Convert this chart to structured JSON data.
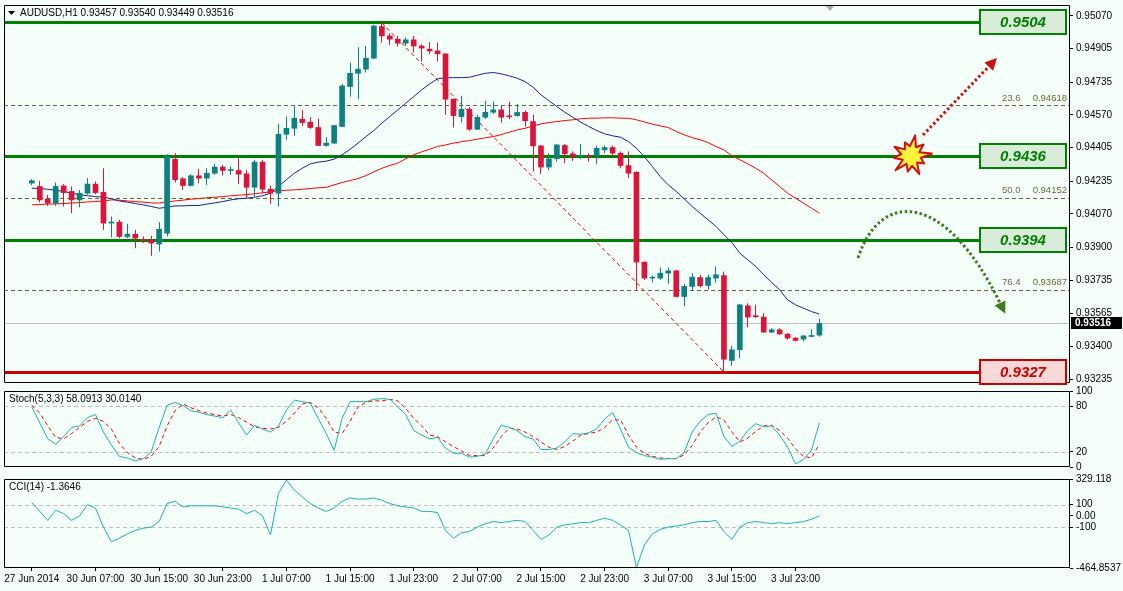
{
  "chart_data": [
    {
      "type": "candlestick",
      "title": "AUDUSD,H1 0.93457 0.93540 0.93449 0.93516",
      "categories": [
        null,
        null,
        null,
        null,
        null,
        null,
        null,
        null,
        null,
        null,
        null,
        null,
        null,
        null,
        null,
        null,
        null,
        null,
        null,
        null,
        null,
        null,
        null,
        null,
        null,
        null,
        null,
        null,
        null,
        null,
        null,
        null,
        null,
        null,
        null,
        null,
        null,
        null,
        null,
        null,
        null,
        null,
        null,
        null,
        null,
        null,
        null,
        null,
        null,
        null,
        null,
        null,
        null,
        null,
        null,
        null,
        null,
        null,
        null,
        null,
        null,
        null,
        null,
        null,
        null,
        null,
        null,
        null,
        null,
        null,
        null,
        null,
        null,
        null,
        null,
        null,
        null,
        null,
        null,
        null,
        null,
        null,
        null,
        null,
        null,
        null,
        null,
        null,
        null,
        null,
        null,
        null,
        null,
        null,
        null,
        null,
        null,
        null,
        null,
        null
      ],
      "series": [
        {
          "type": "line",
          "color": "#1e1e9a",
          "values": [
            0.94199,
            0.94198,
            0.94194,
            0.94189,
            0.94183,
            0.94174,
            0.94166,
            0.94161,
            0.94157,
            0.94154,
            0.94146,
            0.94135,
            0.94129,
            0.94122,
            0.94115,
            0.94107,
            0.94098,
            0.94103,
            0.9411,
            0.9411,
            0.94112,
            0.94112,
            0.94119,
            0.94125,
            0.94132,
            0.9414,
            0.94146,
            0.94149,
            0.94154,
            0.94161,
            0.94174,
            0.94208,
            0.94242,
            0.94275,
            0.943,
            0.94322,
            0.94331,
            0.94336,
            0.94346,
            0.94368,
            0.94396,
            0.94427,
            0.9446,
            0.94491,
            0.94528,
            0.94561,
            0.94595,
            0.94629,
            0.94662,
            0.94696,
            0.94726,
            0.94752,
            0.94757,
            0.94758,
            0.94758,
            0.9476,
            0.9477,
            0.9478,
            0.94784,
            0.94777,
            0.94767,
            0.94755,
            0.94738,
            0.9471,
            0.94671,
            0.94641,
            0.94612,
            0.94583,
            0.94558,
            0.94533,
            0.94511,
            0.94491,
            0.94474,
            0.94464,
            0.94457,
            0.94435,
            0.94401,
            0.94359,
            0.94309,
            0.94258,
            0.94216,
            0.94183,
            0.94146,
            0.94107,
            0.94073,
            0.9404,
            0.94006,
            0.93964,
            0.93925,
            0.93871,
            0.93837,
            0.93804,
            0.93762,
            0.93723,
            0.93686,
            0.93635,
            0.9361,
            0.93593,
            0.93576,
            0.93563
          ]
        },
        {
          "type": "line",
          "color": "#ff0000",
          "values": [
            0.94115,
            0.94117,
            0.94119,
            0.9412,
            0.94122,
            0.94124,
            0.94127,
            0.9413,
            0.94132,
            0.94135,
            0.9414,
            0.94139,
            0.94135,
            0.94132,
            0.94129,
            0.94125,
            0.94124,
            0.9413,
            0.94135,
            0.94139,
            0.94144,
            0.94147,
            0.94151,
            0.94154,
            0.94157,
            0.94161,
            0.94164,
            0.94167,
            0.94171,
            0.94176,
            0.94181,
            0.94186,
            0.94189,
            0.94191,
            0.94194,
            0.94198,
            0.94201,
            0.94204,
            0.94216,
            0.94228,
            0.94238,
            0.94248,
            0.94263,
            0.94282,
            0.943,
            0.94314,
            0.94326,
            0.94348,
            0.94368,
            0.94383,
            0.94396,
            0.9441,
            0.94418,
            0.94427,
            0.94434,
            0.9444,
            0.94447,
            0.94454,
            0.9446,
            0.9447,
            0.94482,
            0.94494,
            0.94502,
            0.94514,
            0.94524,
            0.94531,
            0.94536,
            0.94541,
            0.94545,
            0.9455,
            0.94553,
            0.94553,
            0.94555,
            0.94555,
            0.94553,
            0.94553,
            0.94545,
            0.94534,
            0.94523,
            0.94514,
            0.94506,
            0.94486,
            0.94469,
            0.94455,
            0.94444,
            0.9443,
            0.9441,
            0.94393,
            0.94363,
            0.94343,
            0.94322,
            0.943,
            0.94275,
            0.94241,
            0.94208,
            0.94174,
            0.94149,
            0.94124,
            0.94098,
            0.94073
          ]
        },
        {
          "type": "line",
          "color": "#ff0000",
          "line_style": "dashed",
          "values": [
            null,
            null,
            null,
            null,
            null,
            null,
            null,
            null,
            null,
            null,
            null,
            null,
            null,
            null,
            null,
            null,
            null,
            null,
            null,
            null,
            null,
            null,
            null,
            null,
            null,
            null,
            null,
            null,
            null,
            null,
            null,
            null,
            null,
            null,
            null,
            null,
            null,
            null,
            null,
            null,
            null,
            null,
            null,
            null,
            0.95034,
            null,
            null,
            null,
            null,
            null,
            null,
            null,
            null,
            null,
            null,
            null,
            null,
            null,
            null,
            null,
            null,
            null,
            null,
            null,
            null,
            null,
            null,
            null,
            null,
            null,
            null,
            null,
            null,
            null,
            null,
            null,
            null,
            null,
            null,
            null,
            null,
            null,
            null,
            null,
            null,
            null,
            null,
            0.9327,
            null,
            null,
            null,
            null,
            null,
            null,
            null,
            null,
            null,
            null,
            null,
            null
          ]
        },
        {
          "ohlc": [
            [
              0.94225,
              0.94245,
              0.94215,
              0.94237
            ],
            [
              0.94208,
              0.94236,
              0.94127,
              0.9414
            ],
            [
              0.94144,
              0.94166,
              0.9411,
              0.94124
            ],
            [
              0.94124,
              0.94228,
              0.9411,
              0.94208
            ],
            [
              0.94211,
              0.9422,
              0.94107,
              0.94177
            ],
            [
              0.94183,
              0.94208,
              0.94073,
              0.9414
            ],
            [
              0.9414,
              0.94191,
              0.94103,
              0.94174
            ],
            [
              0.94174,
              0.9425,
              0.94166,
              0.9422
            ],
            [
              0.9422,
              0.94233,
              0.94169,
              0.94177
            ],
            [
              0.94179,
              0.943,
              0.93989,
              0.94023
            ],
            [
              0.94023,
              0.94056,
              0.93952,
              0.94028
            ],
            [
              0.94028,
              0.9404,
              0.93947,
              0.93955
            ],
            [
              0.93955,
              0.94019,
              0.93947,
              0.93967
            ],
            [
              0.93967,
              0.93989,
              0.93896,
              0.93947
            ],
            [
              0.9394,
              0.93955,
              0.93922,
              0.93935
            ],
            [
              0.93938,
              0.93959,
              0.93858,
              0.93922
            ],
            [
              0.93917,
              0.94028,
              0.93879,
              0.93992
            ],
            [
              0.93972,
              0.94371,
              0.93955,
              0.94359
            ],
            [
              0.94346,
              0.94376,
              0.94228,
              0.94242
            ],
            [
              0.94247,
              0.94255,
              0.94191,
              0.94213
            ],
            [
              0.94213,
              0.9427,
              0.94208,
              0.94262
            ],
            [
              0.94262,
              0.94297,
              0.94225,
              0.9425
            ],
            [
              0.9425,
              0.943,
              0.94216,
              0.94275
            ],
            [
              0.94275,
              0.94322,
              0.94267,
              0.94306
            ],
            [
              0.94306,
              0.94317,
              0.94263,
              0.94289
            ],
            [
              0.94289,
              0.94309,
              0.94267,
              0.9429
            ],
            [
              0.94289,
              0.94351,
              0.9422,
              0.9427
            ],
            [
              0.94272,
              0.94292,
              0.94146,
              0.94204
            ],
            [
              0.94204,
              0.94343,
              0.94157,
              0.94331
            ],
            [
              0.94331,
              0.94343,
              0.94174,
              0.94194
            ],
            [
              0.94194,
              0.94213,
              0.9412,
              0.94174
            ],
            [
              0.94174,
              0.94524,
              0.94107,
              0.94472
            ],
            [
              0.94472,
              0.94561,
              0.94444,
              0.94502
            ],
            [
              0.94502,
              0.9462,
              0.94464,
              0.94553
            ],
            [
              0.94548,
              0.94595,
              0.94514,
              0.94531
            ],
            [
              0.94533,
              0.94558,
              0.94499,
              0.94506
            ],
            [
              0.94506,
              0.9455,
              0.94413,
              0.94415
            ],
            [
              0.94415,
              0.94457,
              0.9441,
              0.94427
            ],
            [
              0.94427,
              0.94518,
              0.94423,
              0.94516
            ],
            [
              0.94511,
              0.94726,
              0.94509,
              0.94716
            ],
            [
              0.94713,
              0.94834,
              0.94662,
              0.9478
            ],
            [
              0.9478,
              0.94912,
              0.94649,
              0.94801
            ],
            [
              0.94801,
              0.94918,
              0.94784,
              0.94856
            ],
            [
              0.94856,
              0.95025,
              0.94854,
              0.95019
            ],
            [
              0.95016,
              0.95034,
              0.94935,
              0.94969
            ],
            [
              0.94969,
              0.94982,
              0.94923,
              0.94952
            ],
            [
              0.94952,
              0.94969,
              0.94915,
              0.94932
            ],
            [
              0.94932,
              0.94961,
              0.94918,
              0.94949
            ],
            [
              0.94949,
              0.94969,
              0.94885,
              0.94918
            ],
            [
              0.94918,
              0.94927,
              0.94839,
              0.94907
            ],
            [
              0.94902,
              0.94937,
              0.94876,
              0.94893
            ],
            [
              0.94893,
              0.94935,
              0.94839,
              0.94878
            ],
            [
              0.94878,
              0.94881,
              0.9457,
              0.94649
            ],
            [
              0.94649,
              0.94652,
              0.94506,
              0.94566
            ],
            [
              0.94561,
              0.94666,
              0.94531,
              0.94598
            ],
            [
              0.94598,
              0.94609,
              0.94489,
              0.94497
            ],
            [
              0.94497,
              0.9457,
              0.94494,
              0.94558
            ],
            [
              0.94558,
              0.94641,
              0.9455,
              0.94583
            ],
            [
              0.94583,
              0.94637,
              0.94575,
              0.94595
            ],
            [
              0.94595,
              0.94615,
              0.94531,
              0.94558
            ],
            [
              0.94563,
              0.94637,
              0.94548,
              0.9456
            ],
            [
              0.94566,
              0.94624,
              0.94561,
              0.94582
            ],
            [
              0.94583,
              0.94592,
              0.94511,
              0.9454
            ],
            [
              0.94536,
              0.9457,
              0.94284,
              0.94413
            ],
            [
              0.94413,
              0.94418,
              0.94272,
              0.94306
            ],
            [
              0.94306,
              0.94376,
              0.94289,
              0.94348
            ],
            [
              0.94348,
              0.94423,
              0.94334,
              0.94418
            ],
            [
              0.94415,
              0.94423,
              0.94326,
              0.94373
            ],
            [
              0.94373,
              0.94385,
              0.94337,
              0.94359
            ],
            [
              0.94359,
              0.94423,
              0.94346,
              0.94361
            ],
            [
              0.94361,
              0.94376,
              0.94334,
              0.94359
            ],
            [
              0.94364,
              0.94415,
              0.94321,
              0.94401
            ],
            [
              0.94393,
              0.94415,
              0.94376,
              0.94405
            ],
            [
              0.94405,
              0.94415,
              0.94363,
              0.94376
            ],
            [
              0.94376,
              0.94385,
              0.943,
              0.94314
            ],
            [
              0.94314,
              0.94385,
              0.9425,
              0.94275
            ],
            [
              0.9428,
              0.94284,
              0.93686,
              0.93826
            ],
            [
              0.93826,
              0.93828,
              0.93736,
              0.93745
            ],
            [
              0.93745,
              0.93757,
              0.93723,
              0.93746
            ],
            [
              0.93745,
              0.93799,
              0.93736,
              0.9377
            ],
            [
              0.9377,
              0.93799,
              0.93716,
              0.93782
            ],
            [
              0.93782,
              0.93787,
              0.93647,
              0.93652
            ],
            [
              0.93652,
              0.93716,
              0.93602,
              0.93703
            ],
            [
              0.93703,
              0.9377,
              0.93681,
              0.9375
            ],
            [
              0.93748,
              0.93762,
              0.93698,
              0.93706
            ],
            [
              0.93708,
              0.93762,
              0.93686,
              0.93748
            ],
            [
              0.93745,
              0.93804,
              0.93723,
              0.93762
            ],
            [
              0.93758,
              0.93778,
              0.9327,
              0.93335
            ],
            [
              0.93329,
              0.93403,
              0.93303,
              0.93383
            ],
            [
              0.93383,
              0.93615,
              0.93341,
              0.9361
            ],
            [
              0.93605,
              0.93618,
              0.93497,
              0.93548
            ],
            [
              0.93551,
              0.9361,
              0.93543,
              0.9355
            ],
            [
              0.93548,
              0.93568,
              0.9347,
              0.93472
            ],
            [
              0.93472,
              0.93492,
              0.93467,
              0.93484
            ],
            [
              0.93484,
              0.93492,
              0.93458,
              0.93463
            ],
            [
              0.93462,
              0.93467,
              0.93433,
              0.93442
            ],
            [
              0.93442,
              0.93447,
              0.93425,
              0.9343
            ],
            [
              0.93437,
              0.93458,
              0.93425,
              0.93453
            ],
            [
              0.9345,
              0.93487,
              0.93447,
              0.93452
            ],
            [
              0.93457,
              0.9354,
              0.93449,
              0.93516
            ]
          ],
          "colors": [
            "#0f8080",
            "#dc143c",
            "#dc143c",
            "#0f8080",
            "#dc143c",
            "#dc143c",
            "#0f8080",
            "#0f8080",
            "#dc143c",
            "#dc143c",
            "#0f8080",
            "#dc143c",
            "#0f8080",
            "#dc143c",
            "#dc143c",
            "#dc143c",
            "#0f8080",
            "#0f8080",
            "#dc143c",
            "#dc143c",
            "#0f8080",
            "#dc143c",
            "#0f8080",
            "#0f8080",
            "#dc143c",
            "#0f8080",
            "#dc143c",
            "#dc143c",
            "#0f8080",
            "#dc143c",
            "#dc143c",
            "#0f8080",
            "#0f8080",
            "#0f8080",
            "#dc143c",
            "#dc143c",
            "#dc143c",
            "#0f8080",
            "#0f8080",
            "#0f8080",
            "#0f8080",
            "#0f8080",
            "#0f8080",
            "#0f8080",
            "#dc143c",
            "#dc143c",
            "#dc143c",
            "#0f8080",
            "#dc143c",
            "#dc143c",
            "#dc143c",
            "#dc143c",
            "#dc143c",
            "#dc143c",
            "#0f8080",
            "#dc143c",
            "#0f8080",
            "#0f8080",
            "#0f8080",
            "#dc143c",
            "#dc143c",
            "#0f8080",
            "#dc143c",
            "#dc143c",
            "#dc143c",
            "#0f8080",
            "#0f8080",
            "#dc143c",
            "#dc143c",
            "#0f8080",
            "#dc143c",
            "#0f8080",
            "#0f8080",
            "#dc143c",
            "#dc143c",
            "#dc143c",
            "#dc143c",
            "#dc143c",
            "#0f8080",
            "#0f8080",
            "#0f8080",
            "#dc143c",
            "#0f8080",
            "#0f8080",
            "#dc143c",
            "#0f8080",
            "#0f8080",
            "#dc143c",
            "#0f8080",
            "#0f8080",
            "#dc143c",
            "#dc143c",
            "#dc143c",
            "#0f8080",
            "#dc143c",
            "#dc143c",
            "#dc143c",
            "#0f8080",
            "#0f8080",
            "#0f8080"
          ]
        }
      ],
      "ylim": [
        0.93215,
        0.95125
      ],
      "yticks": [
        {
          "value": 0.9507,
          "label": "0.95070"
        },
        0.94905,
        0.94735,
        {
          "value": 0.9457,
          "label": "0.94570"
        },
        0.94405,
        0.94235,
        {
          "value": 0.9407,
          "label": "0.94070"
        },
        {
          "value": 0.939,
          "label": "0.93900"
        },
        0.93735,
        0.93565,
        {
          "value": 0.934,
          "label": "0.93400"
        },
        0.93235
      ],
      "ref_lines": [
        {
          "axis": "y",
          "value": 0.9504,
          "label": "0.9504",
          "color": "#008000",
          "line_style": "solid"
        },
        {
          "axis": "y",
          "value": 0.9436,
          "label": "0.9436",
          "color": "#008000",
          "line_style": "solid"
        },
        {
          "axis": "y",
          "value": 0.9394,
          "label": "0.9394",
          "color": "#008000",
          "line_style": "solid"
        },
        {
          "axis": "y",
          "value": 0.9327,
          "label": "0.9327",
          "color": "#cc0000",
          "line_style": "solid"
        },
        {
          "axis": "y",
          "value": 0.94618,
          "label": "0.94618",
          "color": "#5b6e2e",
          "line_style": "dashed"
        },
        {
          "axis": "y",
          "value": 0.94152,
          "label": "0.94152",
          "color": "#5b6e2e",
          "line_style": "dashed"
        },
        {
          "axis": "y",
          "value": 0.93687,
          "label": "0.93687",
          "color": "#5b6e2e",
          "line_style": "dashed"
        },
        {
          "axis": "y",
          "value": 0.93516,
          "label": "0.93516",
          "color": "#c0c0c0"
        }
      ],
      "annotations": [
        {
          "text": "23.6",
          "y": 0.94618
        },
        {
          "text": "50.0",
          "y": 0.94152
        },
        {
          "text": "76.4",
          "y": 0.93687
        }
      ],
      "tick_labels": "y"
    },
    {
      "type": "line",
      "title": "Stoch(5,3,3) 58.0913 30.0140",
      "categories": [
        null,
        null,
        null,
        null,
        null,
        null,
        null,
        null,
        null,
        null,
        null,
        null,
        null,
        null,
        null,
        null,
        null,
        null,
        null,
        null,
        null,
        null,
        null,
        null,
        null,
        null,
        null,
        null,
        null,
        null,
        null,
        null,
        null,
        null,
        null,
        null,
        null,
        null,
        null,
        null,
        null,
        null,
        null,
        null,
        null,
        null,
        null,
        null,
        null,
        null,
        null,
        null,
        null,
        null,
        null,
        null,
        null,
        null,
        null,
        null,
        null,
        null,
        null,
        null,
        null,
        null,
        null,
        null,
        null,
        null,
        null,
        null,
        null,
        null,
        null,
        null,
        null,
        null,
        null,
        null,
        null,
        null,
        null,
        null,
        null,
        null,
        null,
        null,
        null,
        null,
        null,
        null,
        null,
        null,
        null,
        null,
        null,
        null,
        null,
        null
      ],
      "series": [
        {
          "color": "#20b2aa",
          "values": [
            79,
            58,
            37,
            30,
            40,
            52,
            54,
            65,
            69,
            46,
            29,
            14,
            12,
            8,
            11,
            20,
            52,
            81,
            85,
            81,
            74,
            72,
            69,
            67,
            65,
            75,
            58,
            42,
            55,
            50,
            46,
            54,
            75,
            88,
            86,
            84,
            64,
            44,
            22,
            64,
            86,
            86,
            86,
            89,
            90,
            89,
            79,
            69,
            48,
            42,
            37,
            39,
            25,
            18,
            18,
            13,
            14,
            17,
            37,
            55,
            52,
            48,
            40,
            37,
            23,
            23,
            25,
            33,
            44,
            43,
            45,
            50,
            63,
            72,
            50,
            26,
            19,
            15,
            13,
            10,
            11,
            11,
            19,
            46,
            60,
            69,
            71,
            40,
            27,
            34,
            48,
            57,
            53,
            54,
            42,
            26,
            4,
            10,
            22,
            58
          ]
        },
        {
          "color": "#ff0000",
          "line_style": "dashed",
          "values": [
            81,
            71,
            54,
            39,
            37,
            44,
            52,
            60,
            64,
            60,
            50,
            31,
            19,
            12,
            10,
            14,
            27,
            54,
            74,
            83,
            78,
            74,
            71,
            69,
            67,
            69,
            65,
            59,
            53,
            51,
            50,
            52,
            60,
            71,
            83,
            85,
            78,
            64,
            46,
            44,
            60,
            79,
            85,
            87,
            87,
            89,
            87,
            77,
            64,
            54,
            42,
            40,
            33,
            27,
            21,
            15,
            15,
            15,
            25,
            40,
            51,
            50,
            46,
            40,
            33,
            26,
            23,
            27,
            34,
            42,
            44,
            46,
            52,
            62,
            62,
            42,
            26,
            18,
            14,
            12,
            11,
            11,
            16,
            28,
            46,
            58,
            66,
            62,
            46,
            33,
            38,
            47,
            54,
            55,
            48,
            38,
            24,
            14,
            12,
            30
          ]
        }
      ],
      "ylim": [
        0,
        100
      ],
      "yticks": [
        0,
        20,
        80,
        100
      ],
      "ref_lines": [
        {
          "axis": "y",
          "value": 20,
          "color": "#c0c0c0",
          "line_style": "dashed"
        },
        {
          "axis": "y",
          "value": 80,
          "color": "#c0c0c0",
          "line_style": "dashed"
        }
      ],
      "tick_labels": "y"
    },
    {
      "type": "line",
      "title": "CCI(14) -1.3646",
      "categories": [
        "27 Jun 2014",
        null,
        null,
        null,
        null,
        null,
        null,
        null,
        "30 Jun 07:00",
        null,
        null,
        null,
        null,
        null,
        null,
        null,
        "30 Jun 15:00",
        null,
        null,
        null,
        null,
        null,
        null,
        null,
        "30 Jun 23:00",
        null,
        null,
        null,
        null,
        null,
        null,
        null,
        "1 Jul 07:00",
        null,
        null,
        null,
        null,
        null,
        null,
        null,
        "1 Jul 15:00",
        null,
        null,
        null,
        null,
        null,
        null,
        null,
        "1 Jul 23:00",
        null,
        null,
        null,
        null,
        null,
        null,
        null,
        "2 Jul 07:00",
        null,
        null,
        null,
        null,
        null,
        null,
        null,
        "2 Jul 15:00",
        null,
        null,
        null,
        null,
        null,
        null,
        null,
        "2 Jul 23:00",
        null,
        null,
        null,
        null,
        null,
        null,
        null,
        "3 Jul 07:00",
        null,
        null,
        null,
        null,
        null,
        null,
        null,
        "3 Jul 15:00",
        null,
        null,
        null,
        null,
        null,
        null,
        null,
        "3 Jul 23:00",
        null,
        null,
        null
      ],
      "series": [
        {
          "color": "#20b2aa",
          "values": [
            120,
            40,
            -40,
            50,
            20,
            -40,
            0,
            100,
            70,
            -100,
            -230,
            -200,
            -160,
            -130,
            -110,
            -100,
            -50,
            110,
            130,
            80,
            90,
            90,
            90,
            90,
            80,
            70,
            60,
            20,
            50,
            0,
            -170,
            200,
            320,
            230,
            170,
            110,
            70,
            40,
            70,
            130,
            160,
            150,
            150,
            160,
            140,
            110,
            90,
            80,
            70,
            40,
            40,
            30,
            -130,
            -200,
            -150,
            -140,
            -100,
            -70,
            -50,
            -60,
            -50,
            -40,
            -50,
            -130,
            -210,
            -170,
            -100,
            -80,
            -70,
            -60,
            -60,
            -40,
            -20,
            -40,
            -80,
            -130,
            -460,
            -260,
            -160,
            -120,
            -100,
            -90,
            -80,
            -60,
            -50,
            -50,
            -40,
            -140,
            -210,
            -100,
            -60,
            -50,
            -60,
            -70,
            -60,
            -70,
            -60,
            -50,
            -30,
            0
          ]
        }
      ],
      "ylim": [
        -464.8537,
        329.118
      ],
      "yticks": [
        -464.8537,
        -100,
        {
          "value": 0,
          "label": "0.00"
        },
        100,
        329.118
      ],
      "ref_lines": [
        {
          "axis": "y",
          "value": 100,
          "color": "#c0c0c0",
          "line_style": "dashed"
        },
        {
          "axis": "y",
          "value": -100,
          "color": "#c0c0c0",
          "line_style": "dashed"
        }
      ]
    }
  ]
}
